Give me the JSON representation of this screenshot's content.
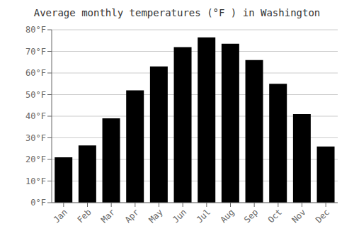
{
  "chart_data": {
    "type": "bar",
    "title": "Average monthly temperatures (°F ) in Washington",
    "categories": [
      "Jan",
      "Feb",
      "Mar",
      "Apr",
      "May",
      "Jun",
      "Jul",
      "Aug",
      "Sep",
      "Oct",
      "Nov",
      "Dec"
    ],
    "values": [
      21,
      26.5,
      39,
      52,
      63,
      72,
      76.5,
      73.5,
      66,
      55,
      41,
      26
    ],
    "ylim": [
      0,
      80
    ],
    "yticks": [
      {
        "value": 0,
        "label": "0°F"
      },
      {
        "value": 10,
        "label": "10°F"
      },
      {
        "value": 20,
        "label": "20°F"
      },
      {
        "value": 30,
        "label": "30°F"
      },
      {
        "value": 40,
        "label": "40°F"
      },
      {
        "value": 50,
        "label": "50°F"
      },
      {
        "value": 60,
        "label": "60°F"
      },
      {
        "value": 70,
        "label": "70°F"
      },
      {
        "value": 80,
        "label": "80°F"
      }
    ],
    "grid": true
  }
}
